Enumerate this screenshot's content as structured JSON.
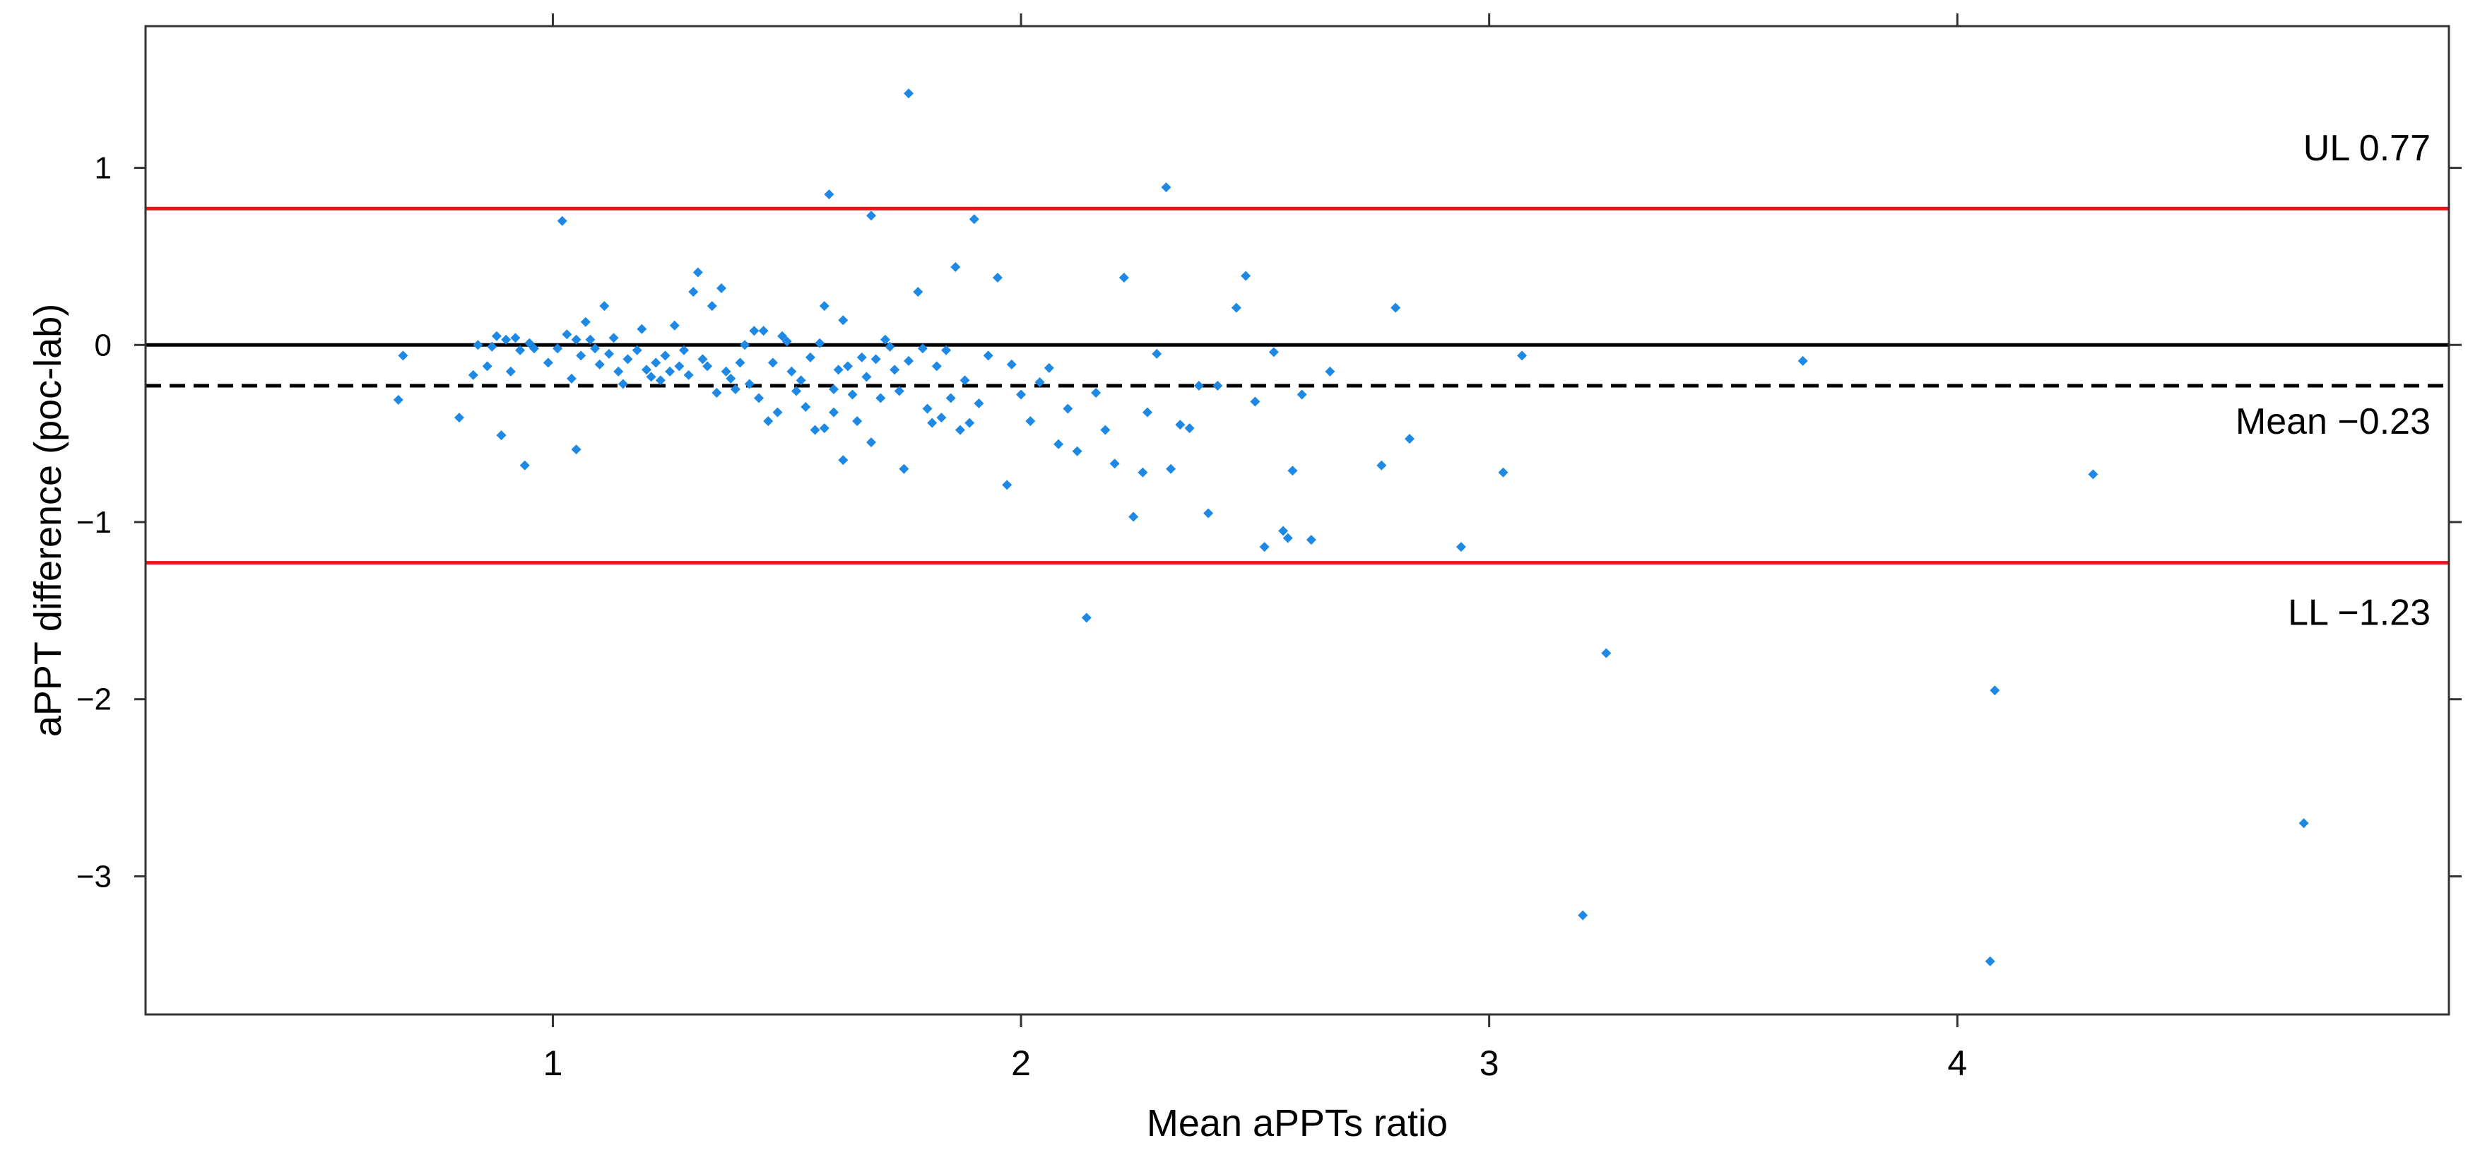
{
  "chart_data": {
    "type": "scatter",
    "title": "",
    "xlabel": "Mean aPPTs ratio",
    "ylabel": "aPPT difference (poc-lab)",
    "xlim": [
      0.13,
      5.05
    ],
    "ylim": [
      -3.78,
      1.8
    ],
    "x_ticks": [
      1,
      2,
      3,
      4
    ],
    "y_ticks": [
      1,
      0,
      -1,
      -2,
      -3
    ],
    "x_tick_labels": [
      "1",
      "2",
      "3",
      "4"
    ],
    "y_tick_labels": [
      "1",
      "0",
      "−1",
      "−2",
      "−3"
    ],
    "grid": false,
    "legend": "none",
    "colors": {
      "points": "#1e88e5",
      "limit_lines": "#e8141c",
      "zero_line": "#000000",
      "mean_line": "#000000"
    },
    "reference_lines": [
      {
        "id": "upper-limit",
        "y": 0.77,
        "style": "solid",
        "color": "#e8141c",
        "label": "UL 0.77"
      },
      {
        "id": "zero",
        "y": 0,
        "style": "solid",
        "color": "#000000",
        "label": ""
      },
      {
        "id": "mean",
        "y": -0.23,
        "style": "dashed",
        "color": "#000000",
        "label": "Mean −0.23"
      },
      {
        "id": "lower-limit",
        "y": -1.23,
        "style": "solid",
        "color": "#e8141c",
        "label": "LL −1.23"
      }
    ],
    "series": [
      {
        "points": [
          [
            0.67,
            -0.31
          ],
          [
            0.68,
            -0.06
          ],
          [
            0.8,
            -0.41
          ],
          [
            0.83,
            -0.17
          ],
          [
            0.84,
            0.0
          ],
          [
            0.86,
            -0.12
          ],
          [
            0.87,
            -0.01
          ],
          [
            0.88,
            0.05
          ],
          [
            0.89,
            -0.51
          ],
          [
            0.9,
            0.03
          ],
          [
            0.91,
            -0.15
          ],
          [
            0.92,
            0.04
          ],
          [
            0.93,
            -0.03
          ],
          [
            0.94,
            -0.68
          ],
          [
            0.95,
            0.01
          ],
          [
            0.96,
            -0.02
          ],
          [
            0.99,
            -0.1
          ],
          [
            1.01,
            -0.02
          ],
          [
            1.02,
            0.7
          ],
          [
            1.03,
            0.06
          ],
          [
            1.04,
            -0.19
          ],
          [
            1.05,
            -0.59
          ],
          [
            1.05,
            0.03
          ],
          [
            1.06,
            -0.06
          ],
          [
            1.07,
            0.13
          ],
          [
            1.08,
            0.03
          ],
          [
            1.09,
            -0.02
          ],
          [
            1.1,
            -0.11
          ],
          [
            1.11,
            0.22
          ],
          [
            1.12,
            -0.05
          ],
          [
            1.13,
            0.04
          ],
          [
            1.14,
            -0.15
          ],
          [
            1.15,
            -0.22
          ],
          [
            1.16,
            -0.08
          ],
          [
            1.18,
            -0.03
          ],
          [
            1.19,
            0.09
          ],
          [
            1.2,
            -0.14
          ],
          [
            1.21,
            -0.18
          ],
          [
            1.22,
            -0.1
          ],
          [
            1.23,
            -0.2
          ],
          [
            1.24,
            -0.06
          ],
          [
            1.25,
            -0.15
          ],
          [
            1.26,
            0.11
          ],
          [
            1.27,
            -0.12
          ],
          [
            1.28,
            -0.03
          ],
          [
            1.29,
            -0.17
          ],
          [
            1.3,
            0.3
          ],
          [
            1.31,
            0.41
          ],
          [
            1.32,
            -0.08
          ],
          [
            1.33,
            -0.12
          ],
          [
            1.34,
            0.22
          ],
          [
            1.35,
            -0.27
          ],
          [
            1.36,
            0.32
          ],
          [
            1.37,
            -0.15
          ],
          [
            1.38,
            -0.19
          ],
          [
            1.39,
            -0.25
          ],
          [
            1.4,
            -0.1
          ],
          [
            1.41,
            0.0
          ],
          [
            1.42,
            -0.22
          ],
          [
            1.43,
            0.08
          ],
          [
            1.44,
            -0.3
          ],
          [
            1.45,
            0.08
          ],
          [
            1.46,
            -0.43
          ],
          [
            1.47,
            -0.1
          ],
          [
            1.48,
            -0.38
          ],
          [
            1.49,
            0.05
          ],
          [
            1.5,
            0.02
          ],
          [
            1.51,
            -0.15
          ],
          [
            1.52,
            -0.26
          ],
          [
            1.53,
            -0.2
          ],
          [
            1.54,
            -0.35
          ],
          [
            1.55,
            -0.07
          ],
          [
            1.56,
            -0.48
          ],
          [
            1.57,
            0.01
          ],
          [
            1.58,
            0.22
          ],
          [
            1.58,
            -0.47
          ],
          [
            1.59,
            0.85
          ],
          [
            1.6,
            -0.25
          ],
          [
            1.6,
            -0.38
          ],
          [
            1.61,
            -0.14
          ],
          [
            1.62,
            0.14
          ],
          [
            1.62,
            -0.65
          ],
          [
            1.63,
            -0.12
          ],
          [
            1.64,
            -0.28
          ],
          [
            1.65,
            -0.43
          ],
          [
            1.66,
            -0.07
          ],
          [
            1.67,
            -0.18
          ],
          [
            1.68,
            0.73
          ],
          [
            1.68,
            -0.55
          ],
          [
            1.69,
            -0.08
          ],
          [
            1.7,
            -0.3
          ],
          [
            1.71,
            0.03
          ],
          [
            1.72,
            -0.01
          ],
          [
            1.73,
            -0.14
          ],
          [
            1.74,
            -0.26
          ],
          [
            1.75,
            -0.7
          ],
          [
            1.76,
            -0.09
          ],
          [
            1.76,
            1.42
          ],
          [
            1.78,
            0.3
          ],
          [
            1.79,
            -0.02
          ],
          [
            1.8,
            -0.36
          ],
          [
            1.81,
            -0.44
          ],
          [
            1.82,
            -0.12
          ],
          [
            1.83,
            -0.41
          ],
          [
            1.84,
            -0.03
          ],
          [
            1.85,
            -0.3
          ],
          [
            1.86,
            0.44
          ],
          [
            1.87,
            -0.48
          ],
          [
            1.88,
            -0.2
          ],
          [
            1.89,
            -0.44
          ],
          [
            1.9,
            0.71
          ],
          [
            1.91,
            -0.33
          ],
          [
            1.93,
            -0.06
          ],
          [
            1.95,
            0.38
          ],
          [
            1.97,
            -0.79
          ],
          [
            1.98,
            -0.11
          ],
          [
            2.0,
            -0.28
          ],
          [
            2.02,
            -0.43
          ],
          [
            2.04,
            -0.21
          ],
          [
            2.06,
            -0.13
          ],
          [
            2.08,
            -0.56
          ],
          [
            2.1,
            -0.36
          ],
          [
            2.12,
            -0.6
          ],
          [
            2.14,
            -1.54
          ],
          [
            2.16,
            -0.27
          ],
          [
            2.18,
            -0.48
          ],
          [
            2.2,
            -0.67
          ],
          [
            2.22,
            0.38
          ],
          [
            2.24,
            -0.97
          ],
          [
            2.26,
            -0.72
          ],
          [
            2.27,
            -0.38
          ],
          [
            2.29,
            -0.05
          ],
          [
            2.31,
            0.89
          ],
          [
            2.32,
            -0.7
          ],
          [
            2.34,
            -0.45
          ],
          [
            2.36,
            -0.47
          ],
          [
            2.38,
            -0.23
          ],
          [
            2.4,
            -0.95
          ],
          [
            2.42,
            -0.23
          ],
          [
            2.46,
            0.21
          ],
          [
            2.48,
            0.39
          ],
          [
            2.5,
            -0.32
          ],
          [
            2.52,
            -1.14
          ],
          [
            2.54,
            -0.04
          ],
          [
            2.56,
            -1.05
          ],
          [
            2.57,
            -1.09
          ],
          [
            2.58,
            -0.71
          ],
          [
            2.6,
            -0.28
          ],
          [
            2.62,
            -1.1
          ],
          [
            2.66,
            -0.15
          ],
          [
            2.77,
            -0.68
          ],
          [
            2.8,
            0.21
          ],
          [
            2.83,
            -0.53
          ],
          [
            2.94,
            -1.14
          ],
          [
            3.03,
            -0.72
          ],
          [
            3.07,
            -0.06
          ],
          [
            3.2,
            -3.22
          ],
          [
            3.25,
            -1.74
          ],
          [
            3.67,
            -0.09
          ],
          [
            4.07,
            -3.48
          ],
          [
            4.08,
            -1.95
          ],
          [
            4.29,
            -0.73
          ],
          [
            4.74,
            -2.7
          ]
        ]
      }
    ]
  }
}
